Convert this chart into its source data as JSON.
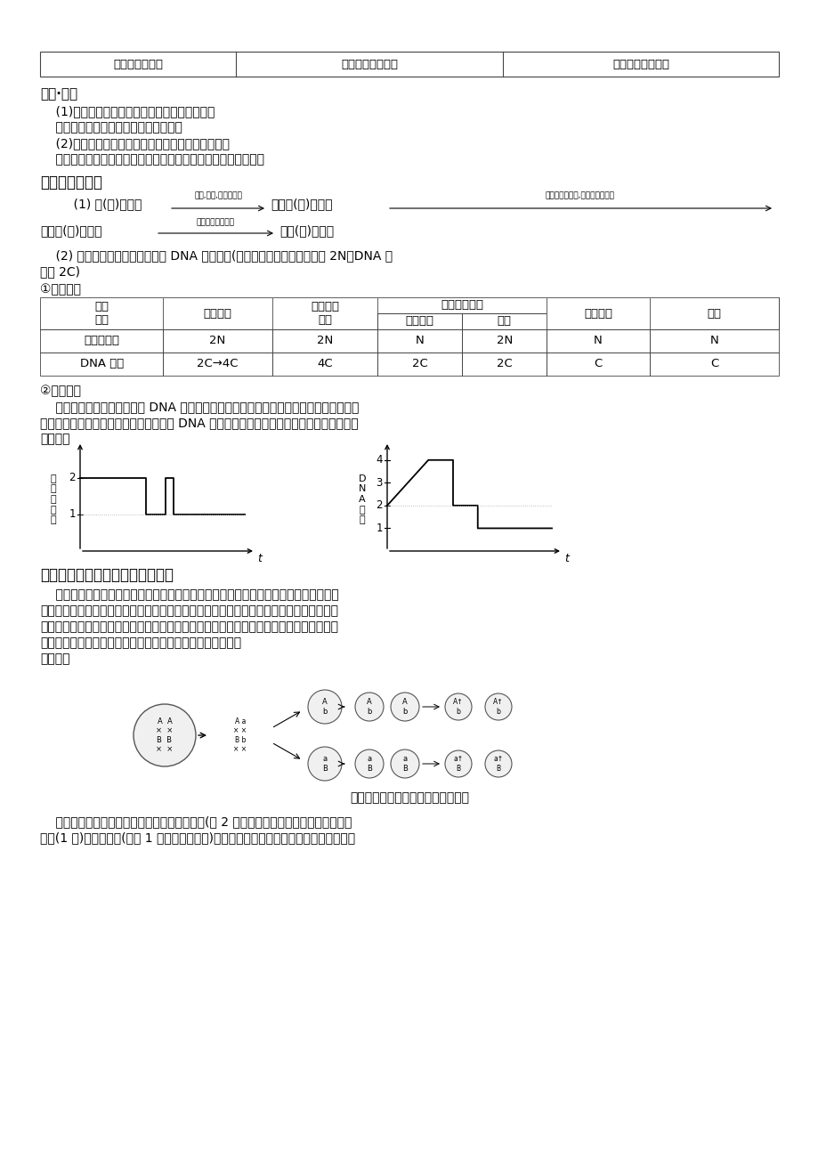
{
  "bg_color": "#ffffff",
  "text_color": "#000000",
  "table1_row": [
    "变异性和适应性",
    "变异小，适应性弱",
    "变异大，适应性强"
  ],
  "section1_title": "連接·聚焦",
  "s1_l1": "    (1)自然状态下，动植物有哪些无性生殖方式？",
  "s1_l2": "    提示：分裂、孢子、出芽和营养生殖。",
  "s1_l3": "    (2)生物技术能实现哪些无性繁殖？其原理是什么？",
  "s1_l4": "    提示：植物组织培养和动物细胞克隆等。原理是细胞的全能性。",
  "section2_title": "考点二减数分裂",
  "arrow1_text": "    (1) 精(卵)原细胞",
  "arrow1_label": "滋生,增大,染色体复制",
  "arrow1_right_text": "初级精(卵)母细胞",
  "arrow2_label": "同源染色体分离,染色体数目减半",
  "arrow3_left": "次级精(卵)母细胞",
  "arrow3_label": "姐妹染色单体分开",
  "arrow3_right": "精子(卵)细胞。",
  "para2_l1": "    (2) 减数分裂过程中，染色体和 DNA 数量变化(正常体细胞中染色体数目为 2N，DNA 含",
  "para2_l2": "量为 2C)",
  "t2_h0": "时期\n比较",
  "t2_h1": "精原细胞",
  "t2_h2": "初级精母\n细胞",
  "t2_h3": "次级精母细胞",
  "t2_h3a": "前、中期",
  "t2_h3b": "后期",
  "t2_h4": "精子细胞",
  "t2_h5": "精子",
  "t2_r1_label": "染色体数目",
  "t2_r1": [
    "2N",
    "2N",
    "N",
    "2N",
    "N",
    "N"
  ],
  "t2_r2_label": "DNA 数目",
  "t2_r2": [
    "2C→4C",
    "4C",
    "2C",
    "2C",
    "C",
    "C"
  ],
  "curve_title": "②变化曲线",
  "curve_para1": "    减数分裂过程中，染色体和 DNA 的变化可以用下列曲线表示。图中的横坐标表示细胞分",
  "curve_para2": "裂的各个时期，纵坐标表示染色体数量或 DNA 含量的变化，该曲线图是历次考试中的重要考",
  "curve_para3": "点之一。",
  "lc_ylabel": "染\n色\n体\n数\n量",
  "rc_ylabel": "D\nN\nA\n含\n量",
  "section3_title": "考点三减数分裂与遗传规律的关系",
  "s3_p1": "    减数分裂是三大遗传规律产生的细胞学基础，遗传规律发生在减数分裂过程中：在减数",
  "s3_p2": "第一次分裂的后期，由于同源染色体的分开，导致了位于同源染色体上等位基因的分离，产",
  "s3_p3": "生了基因的分离定律，与此同时，非同源染色体之间表现为自由组合，导致了位于非同源染",
  "s3_p4": "色体上非等位基因的自由组合，产生了基因的自由组合定律。",
  "s3_xiatu": "如下图：",
  "caption": "基因分离定律、自由组合定律的产生",
  "final1": "    一个精原细胞只能形成两种不同基因型的精子(各 2 个），一个卵原细胞只能形成一种卵",
  "final2": "细胞(1 个)和两种极体(其中 1 个与卵细胞相同)。对于一个生物体来说，在生殖过程中有很"
}
